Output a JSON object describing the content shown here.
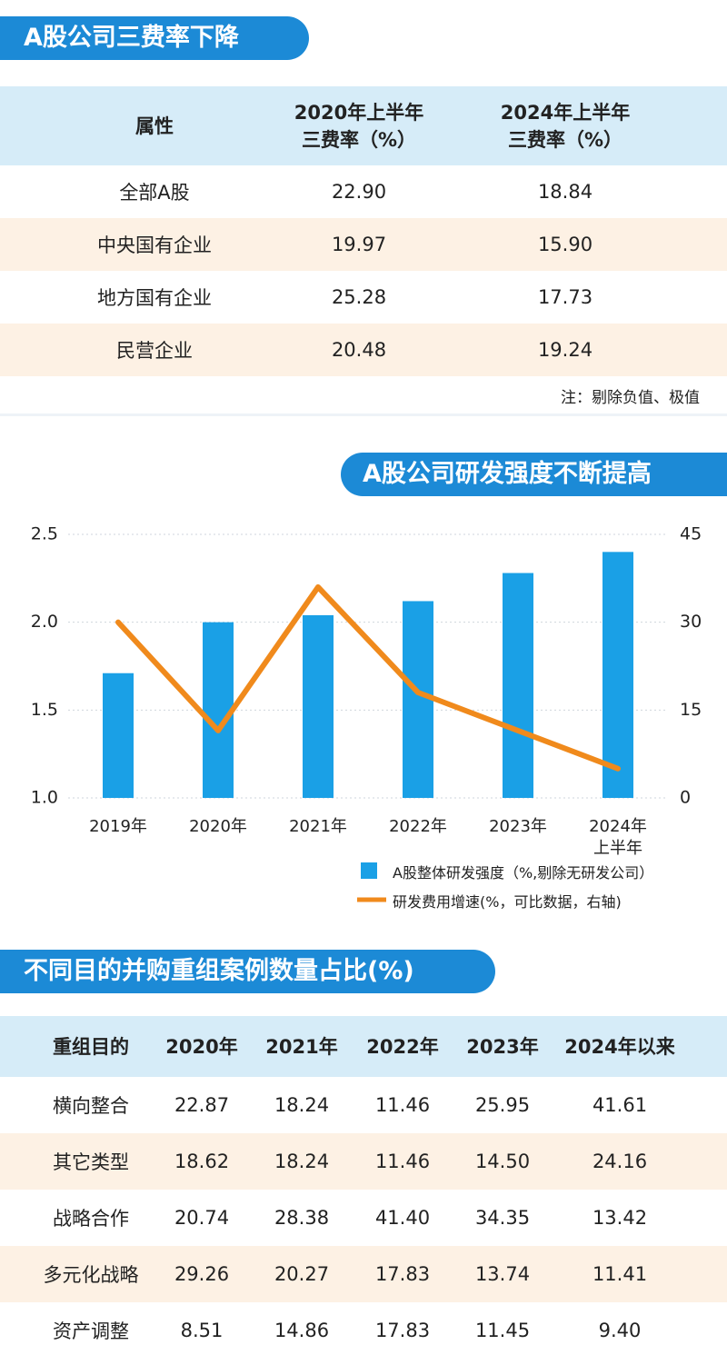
{
  "table1": {
    "title": "A股公司三费率下降",
    "header": [
      "属性",
      "2020年上半年\n三费率（%）",
      "2024年上半年\n三费率（%）"
    ],
    "rows": [
      [
        "全部A股",
        "22.90",
        "18.84"
      ],
      [
        "中央国有企业",
        "19.97",
        "15.90"
      ],
      [
        "地方国有企业",
        "25.28",
        "17.73"
      ],
      [
        "民营企业",
        "20.48",
        "19.24"
      ]
    ],
    "note": "注：剔除负值、极值"
  },
  "chart_data": {
    "type": "bar-line",
    "title": "A股公司研发强度不断提高",
    "categories": [
      "2019年",
      "2020年",
      "2021年",
      "2022年",
      "2023年",
      "2024年上半年"
    ],
    "series": [
      {
        "name": "A股整体研发强度（%,剔除无研发公司）",
        "type": "bar",
        "color": "#1aa0e6",
        "values": [
          1.71,
          2.0,
          2.04,
          2.12,
          2.28,
          2.4
        ]
      },
      {
        "name": "研发费用增速(%，可比数据，右轴)",
        "type": "line",
        "axis": "y2",
        "color": "#f08a1c",
        "values": [
          30,
          11.5,
          36,
          18,
          11.5,
          5
        ]
      }
    ],
    "ylim": [
      1,
      2.5
    ],
    "yticks": [
      {
        "value": 1,
        "label": "1.0"
      },
      {
        "value": 1.5,
        "label": "1.5"
      },
      {
        "value": 2,
        "label": "2.0"
      },
      {
        "value": 2.5,
        "label": "2.5"
      }
    ],
    "y2lim": [
      0,
      45
    ],
    "y2ticks": [
      0,
      15,
      30,
      45
    ],
    "grid": true
  },
  "table2": {
    "title": "不同目的并购重组案例数量占比(%)",
    "header": [
      "重组目的",
      "2020年",
      "2021年",
      "2022年",
      "2023年",
      "2024年以来"
    ],
    "rows": [
      [
        "横向整合",
        "22.87",
        "18.24",
        "11.46",
        "25.95",
        "41.61"
      ],
      [
        "其它类型",
        "18.62",
        "18.24",
        "11.46",
        "14.50",
        "24.16"
      ],
      [
        "战略合作",
        "20.74",
        "28.38",
        "41.40",
        "34.35",
        "13.42"
      ],
      [
        "多元化战略",
        "29.26",
        "20.27",
        "17.83",
        "13.74",
        "11.41"
      ],
      [
        "资产调整",
        "8.51",
        "14.86",
        "17.83",
        "11.45",
        "9.40"
      ]
    ]
  }
}
